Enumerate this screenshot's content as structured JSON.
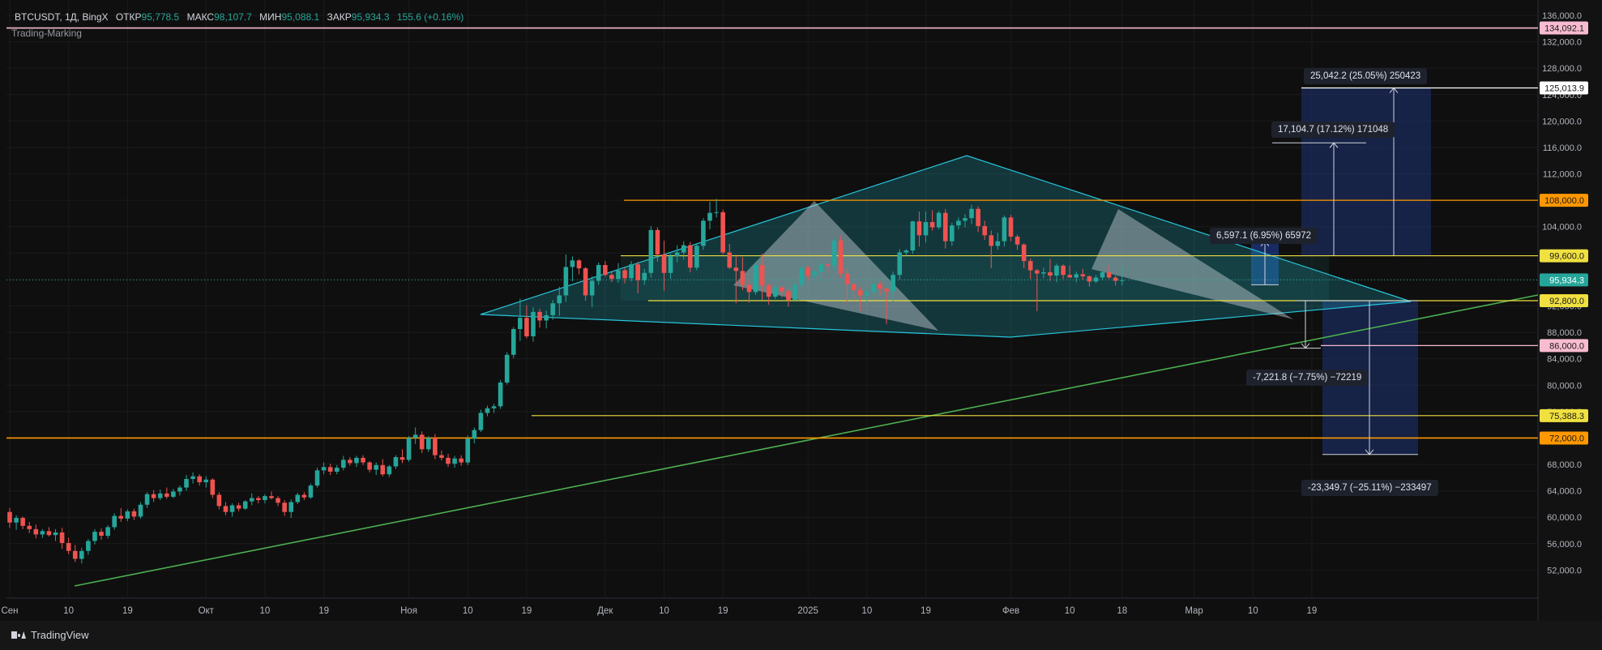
{
  "header": {
    "symbol": "BTCUSDT, 1Д, BingX",
    "open_label": "ОТКР",
    "open": "95,778.5",
    "high_label": "МАКС",
    "high": "98,107.7",
    "low_label": "МИН",
    "low": "95,088.1",
    "close_label": "ЗАКР",
    "close": "95,934.3",
    "change": "155.6 (+0.16%)",
    "indicator": "Trading-Marking"
  },
  "footer": {
    "brand": "TradingView"
  },
  "colors": {
    "up": "#26a69a",
    "down": "#ef5350",
    "yellow": "#f0e040",
    "orange": "#ff9800",
    "green": "#4caf50",
    "triangle": "#26c6da"
  },
  "chart_data": {
    "type": "candlestick",
    "title": "",
    "ylim": [
      50000,
      137000
    ],
    "y_ticks": [
      "136,000.0",
      "132,000.0",
      "128,000.0",
      "124,000.0",
      "120,000.0",
      "116,000.0",
      "112,000.0",
      "108,000.0",
      "104,000.0",
      "100,000.0",
      "96,000.0",
      "92,000.0",
      "88,000.0",
      "84,000.0",
      "80,000.0",
      "76,000.0",
      "72,000.0",
      "68,000.0",
      "64,000.0",
      "60,000.0",
      "56,000.0",
      "52,000.0"
    ],
    "y_tick_values": [
      136000,
      132000,
      128000,
      124000,
      120000,
      116000,
      112000,
      108000,
      104000,
      100000,
      96000,
      92000,
      88000,
      84000,
      80000,
      76000,
      72000,
      68000,
      64000,
      60000,
      56000,
      52000
    ],
    "x_ticks": [
      "Сен",
      "10",
      "19",
      "Окт",
      "10",
      "19",
      "Ноя",
      "10",
      "19",
      "Дек",
      "10",
      "19",
      "2025",
      "10",
      "19",
      "Фев",
      "10",
      "18",
      "Мар",
      "10",
      "19"
    ],
    "x_tick_days": [
      0,
      9,
      18,
      30,
      39,
      48,
      61,
      70,
      79,
      91,
      100,
      109,
      122,
      131,
      140,
      153,
      162,
      170,
      181,
      190,
      199
    ],
    "price_levels": [
      {
        "value": 134092.1,
        "label": "134,092.1",
        "color": "#f8bbd0",
        "text_color": "#1a1a1a"
      },
      {
        "value": 125013.9,
        "label": "125,013.9",
        "color": "#ffffff",
        "text_color": "#1a1a1a"
      },
      {
        "value": 108000.0,
        "label": "108,000.0",
        "color": "#ff9800",
        "text_color": "#1a1a1a"
      },
      {
        "value": 99600.0,
        "label": "99,600.0",
        "color": "#f0e040",
        "text_color": "#1a1a1a"
      },
      {
        "value": 95934.3,
        "label": "95,934.3",
        "color": "#26a69a",
        "text_color": "#ffffff"
      },
      {
        "value": 92800.0,
        "label": "92,800.0",
        "color": "#f0e040",
        "text_color": "#1a1a1a"
      },
      {
        "value": 86000.0,
        "label": "86,000.0",
        "color": "#f8bbd0",
        "text_color": "#1a1a1a"
      },
      {
        "value": 75388.3,
        "label": "75,388.3",
        "color": "#f0e040",
        "text_color": "#1a1a1a"
      },
      {
        "value": 72000.0,
        "label": "72,000.0",
        "color": "#ff9800",
        "text_color": "#1a1a1a"
      }
    ],
    "measurements": [
      {
        "text": "25,042.2 (25.05%) 250423"
      },
      {
        "text": "17,104.7 (17.12%) 171048"
      },
      {
        "text": "6,597.1 (6.95%) 65972"
      },
      {
        "text": "-7,221.8 (−7.75%) −72219"
      },
      {
        "text": "-23,349.7 (−25.11%) −233497"
      }
    ],
    "candles": [
      [
        60800,
        61400,
        58400,
        59200
      ],
      [
        59200,
        60300,
        58100,
        59900
      ],
      [
        59900,
        60100,
        58200,
        58700
      ],
      [
        58700,
        59300,
        57600,
        58200
      ],
      [
        58200,
        58900,
        56800,
        57400
      ],
      [
        57400,
        58200,
        56900,
        57900
      ],
      [
        57900,
        58500,
        57100,
        57300
      ],
      [
        57300,
        58200,
        56400,
        57700
      ],
      [
        57700,
        58400,
        55200,
        56100
      ],
      [
        56100,
        56900,
        54400,
        54900
      ],
      [
        54900,
        55800,
        53200,
        53700
      ],
      [
        53700,
        55400,
        53000,
        54900
      ],
      [
        54900,
        56700,
        54300,
        56400
      ],
      [
        56400,
        58200,
        55900,
        57800
      ],
      [
        57800,
        58300,
        56600,
        57200
      ],
      [
        57200,
        58800,
        56800,
        58500
      ],
      [
        58500,
        60600,
        58100,
        60200
      ],
      [
        60200,
        61400,
        59300,
        59800
      ],
      [
        59800,
        61200,
        59400,
        60900
      ],
      [
        60900,
        61300,
        59600,
        60100
      ],
      [
        60100,
        62300,
        59800,
        61900
      ],
      [
        61900,
        63800,
        61400,
        63500
      ],
      [
        63500,
        64100,
        62300,
        62900
      ],
      [
        62900,
        64200,
        62600,
        63600
      ],
      [
        63600,
        64500,
        62800,
        63100
      ],
      [
        63100,
        64300,
        62900,
        63900
      ],
      [
        63900,
        64800,
        63300,
        64500
      ],
      [
        64500,
        66400,
        64000,
        65800
      ],
      [
        65800,
        66800,
        65100,
        66200
      ],
      [
        66200,
        66500,
        64800,
        65300
      ],
      [
        65300,
        66200,
        64500,
        65700
      ],
      [
        65700,
        65900,
        62900,
        63400
      ],
      [
        63400,
        63800,
        61200,
        61700
      ],
      [
        61700,
        62300,
        60300,
        60800
      ],
      [
        60800,
        62100,
        60100,
        61800
      ],
      [
        61800,
        62200,
        60900,
        61300
      ],
      [
        61300,
        62600,
        61100,
        62400
      ],
      [
        62400,
        63600,
        61800,
        62900
      ],
      [
        62900,
        63200,
        62100,
        62600
      ],
      [
        62600,
        63500,
        62100,
        63200
      ],
      [
        63200,
        63900,
        62700,
        62900
      ],
      [
        62900,
        63200,
        61700,
        62200
      ],
      [
        62200,
        62600,
        60200,
        60800
      ],
      [
        60800,
        62700,
        59900,
        62300
      ],
      [
        62300,
        63700,
        62000,
        63400
      ],
      [
        63400,
        63800,
        62600,
        63000
      ],
      [
        63000,
        65100,
        62800,
        64800
      ],
      [
        64800,
        67500,
        64500,
        67100
      ],
      [
        67100,
        68300,
        66500,
        67600
      ],
      [
        67600,
        68100,
        66400,
        66900
      ],
      [
        66900,
        67900,
        66500,
        67500
      ],
      [
        67500,
        69300,
        67100,
        68700
      ],
      [
        68700,
        69100,
        67800,
        68200
      ],
      [
        68200,
        69300,
        67600,
        69000
      ],
      [
        69000,
        69400,
        67900,
        68300
      ],
      [
        68300,
        68500,
        66800,
        67200
      ],
      [
        67200,
        68300,
        66400,
        67900
      ],
      [
        67900,
        68800,
        66200,
        66500
      ],
      [
        66500,
        67900,
        66100,
        67700
      ],
      [
        67700,
        69400,
        67300,
        69100
      ],
      [
        69100,
        70300,
        68200,
        68700
      ],
      [
        68700,
        72300,
        68400,
        72000
      ],
      [
        72000,
        73600,
        71100,
        72500
      ],
      [
        72500,
        73000,
        69700,
        70300
      ],
      [
        70300,
        72300,
        69900,
        72000
      ],
      [
        72000,
        72600,
        68800,
        69400
      ],
      [
        69400,
        70100,
        68600,
        69000
      ],
      [
        69000,
        69600,
        67600,
        68100
      ],
      [
        68100,
        69300,
        67500,
        68900
      ],
      [
        68900,
        69400,
        67800,
        68300
      ],
      [
        68300,
        72400,
        67900,
        71900
      ],
      [
        71900,
        73600,
        71200,
        73200
      ],
      [
        73200,
        76300,
        72900,
        75800
      ],
      [
        75800,
        76900,
        75300,
        76500
      ],
      [
        76500,
        77200,
        75800,
        76800
      ],
      [
        76800,
        80800,
        76400,
        80400
      ],
      [
        80400,
        85000,
        80100,
        84600
      ],
      [
        84600,
        88800,
        84100,
        88500
      ],
      [
        88500,
        93100,
        86700,
        90200
      ],
      [
        90200,
        92100,
        87100,
        87400
      ],
      [
        87400,
        91800,
        86600,
        91100
      ],
      [
        91100,
        91600,
        88700,
        89800
      ],
      [
        89800,
        91300,
        88600,
        90600
      ],
      [
        90600,
        92900,
        89900,
        92400
      ],
      [
        92400,
        94900,
        90500,
        93600
      ],
      [
        93600,
        99800,
        92600,
        97900
      ],
      [
        97900,
        99500,
        95700,
        98900
      ],
      [
        98900,
        99100,
        96800,
        97700
      ],
      [
        97700,
        97900,
        92800,
        93600
      ],
      [
        93600,
        96500,
        91800,
        95800
      ],
      [
        95800,
        98600,
        95200,
        98200
      ],
      [
        98200,
        98800,
        96400,
        96700
      ],
      [
        96700,
        97300,
        95600,
        96100
      ],
      [
        96100,
        98500,
        95500,
        97400
      ],
      [
        97400,
        97800,
        95400,
        96200
      ],
      [
        96200,
        98800,
        95700,
        98300
      ],
      [
        98300,
        98700,
        93900,
        95900
      ],
      [
        95900,
        97600,
        95200,
        97000
      ],
      [
        97000,
        104100,
        96300,
        103500
      ],
      [
        103500,
        103900,
        98700,
        99800
      ],
      [
        99800,
        101900,
        94300,
        97000
      ],
      [
        97000,
        99900,
        96100,
        99500
      ],
      [
        99500,
        101200,
        98600,
        100100
      ],
      [
        100100,
        101800,
        99000,
        101200
      ],
      [
        101200,
        101700,
        97100,
        97800
      ],
      [
        97800,
        101400,
        97400,
        101100
      ],
      [
        101100,
        105300,
        100500,
        104900
      ],
      [
        104900,
        107800,
        103600,
        106100
      ],
      [
        106100,
        108200,
        105400,
        106200
      ],
      [
        106200,
        106600,
        99800,
        100100
      ],
      [
        100100,
        101400,
        97600,
        97800
      ],
      [
        97800,
        99800,
        92400,
        97300
      ],
      [
        97300,
        99400,
        94400,
        95200
      ],
      [
        95200,
        95900,
        92500,
        94100
      ],
      [
        94100,
        98600,
        93700,
        98200
      ],
      [
        98200,
        99900,
        92900,
        95100
      ],
      [
        95100,
        95400,
        92200,
        93400
      ],
      [
        93400,
        95200,
        93100,
        94800
      ],
      [
        94800,
        95100,
        93300,
        94200
      ],
      [
        94200,
        94500,
        91900,
        92900
      ],
      [
        92900,
        96000,
        92800,
        95200
      ],
      [
        95200,
        98100,
        94600,
        97800
      ],
      [
        97800,
        98100,
        95900,
        96600
      ],
      [
        96600,
        97500,
        96100,
        97200
      ],
      [
        97200,
        98800,
        96200,
        98300
      ],
      [
        98300,
        98500,
        97000,
        98100
      ],
      [
        98100,
        102300,
        97400,
        101900
      ],
      [
        101900,
        102600,
        96300,
        96900
      ],
      [
        96900,
        97700,
        92400,
        95300
      ],
      [
        95300,
        95500,
        92800,
        94400
      ],
      [
        94400,
        94900,
        91200,
        93600
      ],
      [
        93600,
        94500,
        92500,
        94100
      ],
      [
        94100,
        95600,
        93800,
        95300
      ],
      [
        95300,
        95800,
        93600,
        94600
      ],
      [
        94600,
        94700,
        89300,
        94200
      ],
      [
        94200,
        97200,
        92700,
        96700
      ],
      [
        96700,
        100600,
        96000,
        100100
      ],
      [
        100100,
        100600,
        99600,
        100400
      ],
      [
        100400,
        104900,
        99900,
        104800
      ],
      [
        104800,
        106300,
        101000,
        102700
      ],
      [
        102700,
        106300,
        101600,
        104700
      ],
      [
        104700,
        106500,
        103400,
        103900
      ],
      [
        103900,
        106400,
        103600,
        106100
      ],
      [
        106100,
        106700,
        100700,
        101800
      ],
      [
        101800,
        104600,
        101100,
        104200
      ],
      [
        104200,
        105400,
        103600,
        104900
      ],
      [
        104900,
        105900,
        103900,
        105300
      ],
      [
        105300,
        107300,
        104400,
        106700
      ],
      [
        106700,
        107100,
        103200,
        104100
      ],
      [
        104100,
        104900,
        102000,
        102700
      ],
      [
        102700,
        103400,
        97700,
        101100
      ],
      [
        101100,
        103100,
        100500,
        101800
      ],
      [
        101800,
        105700,
        101000,
        105400
      ],
      [
        105400,
        105800,
        101800,
        102500
      ],
      [
        102500,
        102800,
        100500,
        101300
      ],
      [
        101300,
        101500,
        97700,
        98800
      ],
      [
        98800,
        99200,
        96100,
        97400
      ],
      [
        97400,
        97600,
        91200,
        96900
      ],
      [
        96900,
        97800,
        96200,
        97100
      ],
      [
        97100,
        99100,
        95800,
        96600
      ],
      [
        96600,
        98400,
        95600,
        98100
      ],
      [
        98100,
        98300,
        96100,
        96700
      ],
      [
        96700,
        98100,
        96300,
        96300
      ],
      [
        96300,
        97200,
        95600,
        96800
      ],
      [
        96800,
        97600,
        96000,
        96500
      ],
      [
        96500,
        96600,
        94900,
        95700
      ],
      [
        95700,
        96700,
        95500,
        96300
      ],
      [
        96300,
        97300,
        95900,
        97100
      ],
      [
        97100,
        98100,
        96100,
        96300
      ],
      [
        96300,
        96600,
        95100,
        95800
      ],
      [
        95800,
        98100,
        95100,
        95900
      ]
    ]
  }
}
